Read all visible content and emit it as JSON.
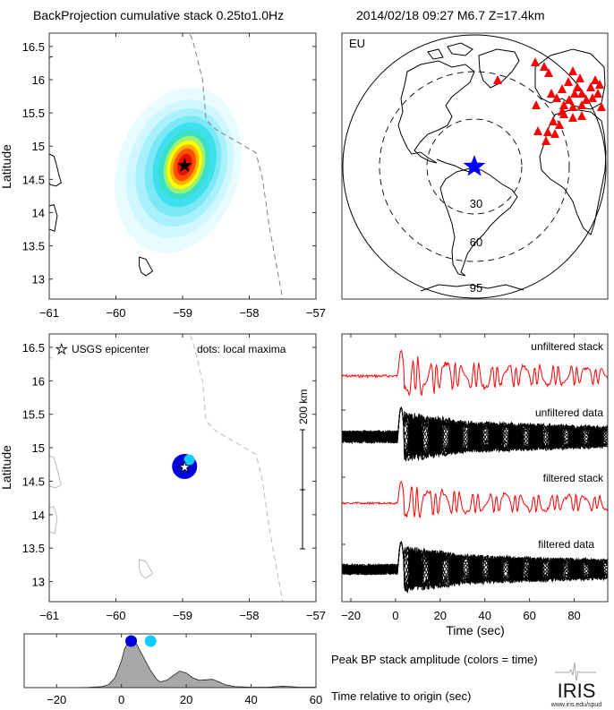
{
  "header": {
    "title": "BackProjection cumulative stack 0.25to1.0Hz",
    "event": "2014/02/18 09:27  M6.7  Z=17.4km"
  },
  "colors": {
    "red": "#ff0000",
    "blue": "#0000ff",
    "dark_blue": "#0000dd",
    "cyan": "#11ccff",
    "gray_fill": "#a8a8a8",
    "trench": "#808080"
  },
  "chart_data": [
    {
      "type": "heatmap",
      "name": "cumulative-stack-map",
      "xlabel": "",
      "ylabel": "Latitude",
      "xlim": [
        -61,
        -57
      ],
      "ylim": [
        12.7,
        16.7
      ],
      "xticks": [
        "−61",
        "−60",
        "−59",
        "−58",
        "−57"
      ],
      "xtick_values": [
        -61,
        -60,
        -59,
        -58,
        -57
      ],
      "yticks": [
        "16.5",
        "16",
        "15.5",
        "15",
        "14.5",
        "14",
        "13.5",
        "13"
      ],
      "ytick_values": [
        16.5,
        16,
        15.5,
        15,
        14.5,
        14,
        13.5,
        13
      ],
      "peak": {
        "lon": -58.97,
        "lat": 14.72
      },
      "epicenter": {
        "lon": -58.97,
        "lat": 14.72
      }
    },
    {
      "type": "scatter",
      "name": "station-map",
      "label": "EU",
      "distance_rings": [
        "30",
        "60",
        "95"
      ],
      "epicenter_marker": "blue-star",
      "station_marker": "red-triangle"
    },
    {
      "type": "scatter",
      "name": "local-maxima-map",
      "ylabel": "Latitude",
      "legend_epicenter": "USGS epicenter",
      "legend_dots": "dots: local maxima",
      "scale_label": "200 km",
      "xlim": [
        -61,
        -57
      ],
      "ylim": [
        12.7,
        16.7
      ],
      "xticks": [
        "−61",
        "−60",
        "−59",
        "−58",
        "−57"
      ],
      "xtick_values": [
        -61,
        -60,
        -59,
        -58,
        -57
      ],
      "yticks": [
        "16.5",
        "16",
        "15.5",
        "15",
        "14.5",
        "14",
        "13.5",
        "13"
      ],
      "ytick_values": [
        16.5,
        16,
        15.5,
        15,
        14.5,
        14,
        13.5,
        13
      ],
      "points": [
        {
          "lon": -58.97,
          "lat": 14.72,
          "time": 3,
          "color": "#0000dd",
          "size": "large"
        },
        {
          "lon": -58.9,
          "lat": 14.82,
          "time": 9,
          "color": "#11ccff",
          "size": "small"
        }
      ],
      "epicenter": {
        "lon": -58.97,
        "lat": 14.72
      }
    },
    {
      "type": "line",
      "name": "waveforms",
      "xlabel": "Time (sec)",
      "xlim": [
        -24,
        95
      ],
      "xticks": [
        "−20",
        "0",
        "20",
        "40",
        "60",
        "80"
      ],
      "xtick_values": [
        -20,
        0,
        20,
        40,
        60,
        80
      ],
      "series": [
        {
          "name": "unfiltered stack",
          "color": "#ff0000"
        },
        {
          "name": "unfiltered data",
          "color": "#000000"
        },
        {
          "name": "filtered stack",
          "color": "#ff0000"
        },
        {
          "name": "filtered data",
          "color": "#000000"
        }
      ]
    },
    {
      "type": "area",
      "name": "peak-amplitude",
      "title": "Peak BP stack amplitude (colors = time)",
      "xlabel": "Time relative to origin (sec)",
      "xlim": [
        -30,
        60
      ],
      "ylim": [
        0,
        1.1
      ],
      "xticks": [
        "−20",
        "0",
        "20",
        "40",
        "60"
      ],
      "xtick_values": [
        -20,
        0,
        20,
        40,
        60
      ],
      "x": [
        -30,
        -15,
        -10,
        -6,
        -4,
        -2,
        0,
        1,
        2,
        3,
        4,
        5,
        7,
        9,
        11,
        12,
        14,
        16,
        18,
        20,
        22,
        24,
        26,
        28,
        30,
        32,
        35,
        40,
        45,
        50,
        55,
        60
      ],
      "y": [
        0,
        0,
        0.005,
        0.02,
        0.06,
        0.2,
        0.55,
        0.8,
        0.92,
        0.97,
        0.95,
        0.85,
        0.6,
        0.35,
        0.16,
        0.12,
        0.15,
        0.25,
        0.34,
        0.3,
        0.2,
        0.15,
        0.16,
        0.17,
        0.12,
        0.06,
        0.02,
        0.01,
        0.01,
        0.03,
        0.01,
        0.01
      ],
      "maxima": [
        {
          "time": 3,
          "color": "#0000dd"
        },
        {
          "time": 9,
          "color": "#11ccff"
        }
      ]
    }
  ],
  "logo": {
    "text": "IRIS",
    "url_text": "www.iris.edu/spud"
  }
}
